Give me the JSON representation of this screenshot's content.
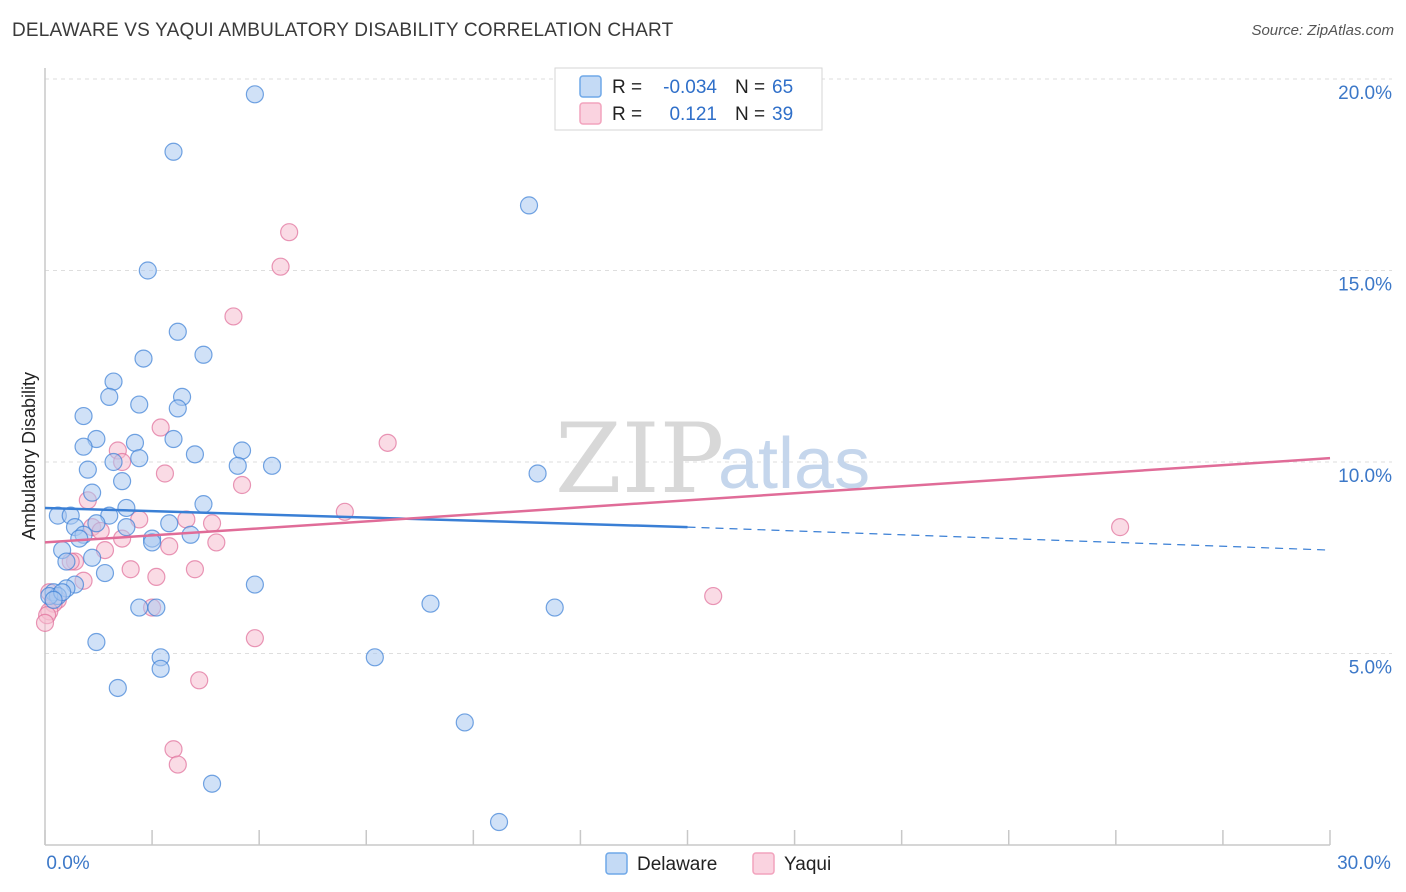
{
  "title": "DELAWARE VS YAQUI AMBULATORY DISABILITY CORRELATION CHART",
  "source": "Source: ZipAtlas.com",
  "watermark": {
    "zip": "ZIP",
    "atlas": "atlas"
  },
  "stats": [
    {
      "r_label": "R =",
      "r_value": "-0.034",
      "n_label": "N =",
      "n_value": "65",
      "color": "#6fa8e8"
    },
    {
      "r_label": "R =",
      "r_value": "0.121",
      "n_label": "N =",
      "n_value": "39",
      "color": "#f2a3bd"
    }
  ],
  "legend": [
    {
      "name": "Delaware",
      "color": "#6fa8e8"
    },
    {
      "name": "Yaqui",
      "color": "#f2a3bd"
    }
  ],
  "chart_data": {
    "type": "scatter",
    "title": "DELAWARE VS YAQUI AMBULATORY DISABILITY CORRELATION CHART",
    "xlabel": "",
    "ylabel": "Ambulatory Disability",
    "xlim": [
      0,
      30
    ],
    "ylim": [
      0,
      20
    ],
    "x_tick_labels": [
      "0.0%",
      "30.0%"
    ],
    "y_ticks": [
      5,
      10,
      15,
      20
    ],
    "y_tick_labels": [
      "5.0%",
      "10.0%",
      "15.0%",
      "20.0%"
    ],
    "grid": true,
    "series": [
      {
        "name": "Delaware",
        "color": "#3a7fd5",
        "fill": "#a9c9f0",
        "trend": {
          "x_start": 0,
          "y_start": 8.8,
          "x_solid_end": 15,
          "y_solid_end": 8.3,
          "x_end": 30,
          "y_end": 7.7
        },
        "points": [
          [
            4.9,
            19.6
          ],
          [
            3.0,
            18.1
          ],
          [
            11.3,
            16.7
          ],
          [
            2.4,
            15.0
          ],
          [
            3.1,
            13.4
          ],
          [
            3.7,
            12.8
          ],
          [
            2.3,
            12.7
          ],
          [
            1.6,
            12.1
          ],
          [
            1.5,
            11.7
          ],
          [
            3.2,
            11.7
          ],
          [
            2.2,
            11.5
          ],
          [
            3.1,
            11.4
          ],
          [
            0.9,
            11.2
          ],
          [
            1.2,
            10.6
          ],
          [
            2.1,
            10.5
          ],
          [
            0.9,
            10.4
          ],
          [
            3.0,
            10.6
          ],
          [
            4.6,
            10.3
          ],
          [
            3.5,
            10.2
          ],
          [
            1.6,
            10.0
          ],
          [
            2.2,
            10.1
          ],
          [
            1.0,
            9.8
          ],
          [
            4.5,
            9.9
          ],
          [
            5.3,
            9.9
          ],
          [
            11.5,
            9.7
          ],
          [
            1.8,
            9.5
          ],
          [
            1.1,
            9.2
          ],
          [
            1.9,
            8.8
          ],
          [
            3.7,
            8.9
          ],
          [
            0.3,
            8.6
          ],
          [
            0.6,
            8.6
          ],
          [
            1.5,
            8.6
          ],
          [
            1.2,
            8.4
          ],
          [
            0.7,
            8.3
          ],
          [
            1.9,
            8.3
          ],
          [
            2.9,
            8.4
          ],
          [
            2.5,
            8.0
          ],
          [
            3.4,
            8.1
          ],
          [
            0.9,
            8.1
          ],
          [
            0.8,
            8.0
          ],
          [
            2.5,
            7.9
          ],
          [
            0.4,
            7.7
          ],
          [
            1.1,
            7.5
          ],
          [
            0.5,
            7.4
          ],
          [
            1.4,
            7.1
          ],
          [
            0.7,
            6.8
          ],
          [
            0.5,
            6.7
          ],
          [
            4.9,
            6.8
          ],
          [
            0.2,
            6.6
          ],
          [
            0.3,
            6.5
          ],
          [
            0.1,
            6.5
          ],
          [
            0.4,
            6.6
          ],
          [
            0.2,
            6.4
          ],
          [
            2.2,
            6.2
          ],
          [
            2.6,
            6.2
          ],
          [
            9.0,
            6.3
          ],
          [
            11.9,
            6.2
          ],
          [
            1.2,
            5.3
          ],
          [
            2.7,
            4.9
          ],
          [
            7.7,
            4.9
          ],
          [
            2.7,
            4.6
          ],
          [
            1.7,
            4.1
          ],
          [
            9.8,
            3.2
          ],
          [
            3.9,
            1.6
          ],
          [
            10.6,
            0.6
          ]
        ]
      },
      {
        "name": "Yaqui",
        "color": "#e06c98",
        "fill": "#f6bdd0",
        "trend": {
          "x_start": 0,
          "y_start": 7.9,
          "x_end": 30,
          "y_end": 10.1
        },
        "points": [
          [
            5.7,
            16.0
          ],
          [
            5.5,
            15.1
          ],
          [
            4.4,
            13.8
          ],
          [
            8.0,
            10.5
          ],
          [
            2.7,
            10.9
          ],
          [
            1.7,
            10.3
          ],
          [
            1.8,
            10.0
          ],
          [
            2.8,
            9.7
          ],
          [
            1.0,
            9.0
          ],
          [
            4.6,
            9.4
          ],
          [
            7.0,
            8.7
          ],
          [
            2.2,
            8.5
          ],
          [
            3.3,
            8.5
          ],
          [
            3.9,
            8.4
          ],
          [
            1.1,
            8.3
          ],
          [
            1.3,
            8.2
          ],
          [
            2.9,
            7.8
          ],
          [
            4.0,
            7.9
          ],
          [
            1.4,
            7.7
          ],
          [
            0.7,
            7.4
          ],
          [
            3.5,
            7.2
          ],
          [
            2.0,
            7.2
          ],
          [
            2.6,
            7.0
          ],
          [
            0.9,
            6.9
          ],
          [
            25.1,
            8.3
          ],
          [
            15.6,
            6.5
          ],
          [
            0.1,
            6.6
          ],
          [
            0.3,
            6.4
          ],
          [
            0.2,
            6.3
          ],
          [
            0.1,
            6.1
          ],
          [
            2.5,
            6.2
          ],
          [
            0.05,
            6.0
          ],
          [
            0.0,
            5.8
          ],
          [
            4.9,
            5.4
          ],
          [
            3.6,
            4.3
          ],
          [
            3.0,
            2.5
          ],
          [
            3.1,
            2.1
          ],
          [
            0.6,
            7.4
          ],
          [
            1.8,
            8.0
          ]
        ]
      }
    ]
  }
}
